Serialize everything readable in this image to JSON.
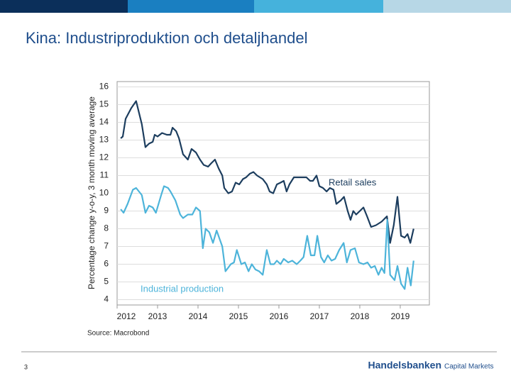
{
  "slide": {
    "page_number": "3",
    "logo": "Handelsbanken",
    "logo_sub": "Capital Markets"
  },
  "chart_data": {
    "type": "line",
    "title": "Kina: Industriproduktion och detaljhandel",
    "y_label": "Percentage change y-o-y, 3 month moving average",
    "source": "Source: Macrobond",
    "xlim": [
      2012,
      2019.72
    ],
    "xticks": [
      2012,
      2013,
      2014,
      2015,
      2016,
      2017,
      2018,
      2019
    ],
    "ylim": [
      3.7,
      16.3
    ],
    "yticks": [
      4,
      5,
      6,
      7,
      8,
      9,
      10,
      11,
      12,
      13,
      14,
      15,
      16
    ],
    "grid": true,
    "series": [
      {
        "name": "Retail sales",
        "color": "#1c3d5e",
        "x": [
          2012.09,
          2012.14,
          2012.21,
          2012.35,
          2012.47,
          2012.61,
          2012.7,
          2012.79,
          2012.88,
          2012.93,
          2013.0,
          2013.11,
          2013.23,
          2013.32,
          2013.37,
          2013.46,
          2013.53,
          2013.63,
          2013.75,
          2013.84,
          2013.95,
          2014.05,
          2014.14,
          2014.25,
          2014.33,
          2014.42,
          2014.51,
          2014.6,
          2014.65,
          2014.75,
          2014.84,
          2014.93,
          2015.02,
          2015.11,
          2015.19,
          2015.28,
          2015.37,
          2015.46,
          2015.6,
          2015.7,
          2015.77,
          2015.86,
          2015.95,
          2016.04,
          2016.12,
          2016.19,
          2016.26,
          2016.37,
          2016.56,
          2016.68,
          2016.77,
          2016.84,
          2016.93,
          2017.0,
          2017.09,
          2017.18,
          2017.26,
          2017.35,
          2017.42,
          2017.53,
          2017.61,
          2017.7,
          2017.77,
          2017.84,
          2017.91,
          2018.0,
          2018.09,
          2018.18,
          2018.28,
          2018.4,
          2018.54,
          2018.67,
          2018.75,
          2018.84,
          2018.93,
          2019.02,
          2019.11,
          2019.18,
          2019.25,
          2019.33
        ],
        "values": [
          13.1,
          13.2,
          14.2,
          14.8,
          15.2,
          13.9,
          12.6,
          12.8,
          12.9,
          13.3,
          13.2,
          13.4,
          13.3,
          13.3,
          13.7,
          13.5,
          13.1,
          12.2,
          11.9,
          12.5,
          12.3,
          11.9,
          11.6,
          11.5,
          11.7,
          11.9,
          11.4,
          11.0,
          10.3,
          10.0,
          10.1,
          10.6,
          10.5,
          10.8,
          10.9,
          11.1,
          11.2,
          11.0,
          10.8,
          10.5,
          10.1,
          10.0,
          10.5,
          10.6,
          10.7,
          10.1,
          10.5,
          10.9,
          10.9,
          10.9,
          10.7,
          10.7,
          11.0,
          10.4,
          10.3,
          10.1,
          10.3,
          10.2,
          9.4,
          9.6,
          9.8,
          9.0,
          8.5,
          9.0,
          8.8,
          9.0,
          9.2,
          8.7,
          8.1,
          8.2,
          8.4,
          8.7,
          7.2,
          8.2,
          9.8,
          7.6,
          7.5,
          7.7,
          7.2,
          8.0
        ]
      },
      {
        "name": "Industrial production",
        "color": "#4db4da",
        "x": [
          2012.09,
          2012.16,
          2012.26,
          2012.39,
          2012.47,
          2012.61,
          2012.7,
          2012.79,
          2012.88,
          2012.96,
          2013.09,
          2013.16,
          2013.26,
          2013.32,
          2013.44,
          2013.56,
          2013.63,
          2013.75,
          2013.86,
          2013.95,
          2014.05,
          2014.12,
          2014.19,
          2014.28,
          2014.37,
          2014.46,
          2014.6,
          2014.68,
          2014.81,
          2014.89,
          2014.96,
          2015.07,
          2015.16,
          2015.25,
          2015.33,
          2015.42,
          2015.51,
          2015.6,
          2015.7,
          2015.79,
          2015.88,
          2015.95,
          2016.04,
          2016.12,
          2016.23,
          2016.33,
          2016.44,
          2016.53,
          2016.61,
          2016.7,
          2016.79,
          2016.88,
          2016.95,
          2017.04,
          2017.12,
          2017.21,
          2017.3,
          2017.39,
          2017.49,
          2017.6,
          2017.68,
          2017.77,
          2017.88,
          2017.98,
          2018.09,
          2018.19,
          2018.28,
          2018.37,
          2018.46,
          2018.54,
          2018.61,
          2018.68,
          2018.75,
          2018.86,
          2018.93,
          2019.02,
          2019.11,
          2019.18,
          2019.26,
          2019.33
        ],
        "values": [
          9.1,
          8.9,
          9.4,
          10.2,
          10.3,
          9.9,
          8.9,
          9.3,
          9.2,
          8.9,
          9.9,
          10.4,
          10.3,
          10.1,
          9.6,
          8.8,
          8.6,
          8.8,
          8.8,
          9.2,
          9.0,
          6.9,
          8.0,
          7.8,
          7.2,
          7.9,
          7.0,
          5.6,
          6.0,
          6.1,
          6.8,
          6.0,
          6.1,
          5.6,
          6.0,
          5.7,
          5.6,
          5.4,
          6.8,
          6.0,
          6.0,
          6.2,
          6.0,
          6.3,
          6.1,
          6.2,
          6.0,
          6.2,
          6.4,
          7.6,
          6.5,
          6.5,
          7.6,
          6.4,
          6.1,
          6.5,
          6.2,
          6.3,
          6.8,
          7.2,
          6.1,
          6.8,
          6.9,
          6.1,
          6.0,
          6.1,
          5.8,
          5.9,
          5.4,
          5.8,
          5.5,
          8.5,
          5.4,
          5.1,
          5.9,
          4.9,
          4.6,
          5.8,
          4.8,
          6.2
        ]
      }
    ]
  }
}
